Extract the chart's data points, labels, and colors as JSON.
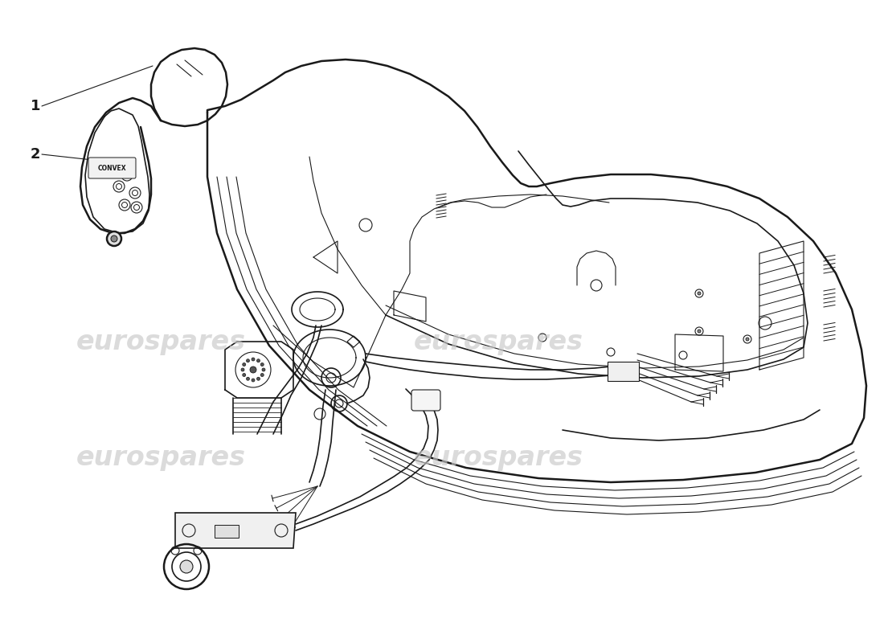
{
  "bg_color": "#ffffff",
  "line_color": "#1a1a1a",
  "lw_main": 1.8,
  "lw_med": 1.2,
  "lw_thin": 0.8,
  "watermark_color": "#c8c8c8",
  "watermark_text": "eurospares",
  "figsize": [
    11.0,
    8.0
  ],
  "dpi": 100
}
